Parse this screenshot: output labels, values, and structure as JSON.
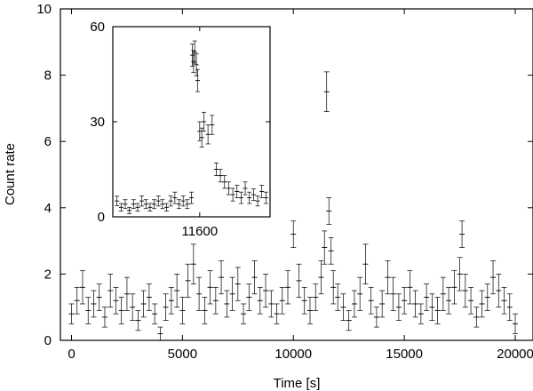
{
  "chart_data": [
    {
      "type": "scatter",
      "xlabel": "Time [s]",
      "ylabel": "Count rate",
      "xlim": [
        -500,
        20800
      ],
      "ylim": [
        0,
        10
      ],
      "xticks": [
        0,
        5000,
        10000,
        15000,
        20000
      ],
      "xtick_labels": [
        "0",
        "5000",
        "10000",
        "15000",
        "20000"
      ],
      "yticks": [
        0,
        2,
        4,
        6,
        8,
        10
      ],
      "ytick_labels": [
        "0",
        "2",
        "4",
        "6",
        "8",
        "10"
      ],
      "grid": false,
      "series": [
        {
          "x": [
            0,
            250,
            500,
            750,
            1000,
            1250,
            1500,
            1750,
            2000,
            2250,
            2500,
            2750,
            3000,
            3250,
            3500,
            3750,
            4000,
            4250,
            4500,
            4750,
            5000,
            5250,
            5500,
            5750,
            6000,
            6250,
            6500,
            6750,
            7000,
            7250,
            7500,
            7750,
            8000,
            8250,
            8500,
            8750,
            9000,
            9250,
            9500,
            9750,
            10000,
            10250,
            10500,
            10750,
            11000,
            11250,
            11400,
            11500,
            11600,
            11700,
            11800,
            12000,
            12250,
            12500,
            12750,
            13000,
            13250,
            13500,
            13750,
            14000,
            14250,
            14500,
            14750,
            15000,
            15250,
            15500,
            15750,
            16000,
            16250,
            16500,
            16750,
            17000,
            17250,
            17500,
            17600,
            17750,
            18000,
            18250,
            18500,
            18750,
            19000,
            19250,
            19500,
            19750,
            20000
          ],
          "y": [
            0.8,
            1.2,
            1.6,
            0.9,
            1.1,
            1.3,
            0.7,
            1.5,
            1.2,
            0.9,
            1.4,
            1.0,
            0.6,
            1.1,
            1.3,
            0.8,
            0.2,
            1.0,
            1.2,
            1.5,
            0.9,
            1.8,
            2.3,
            1.4,
            0.9,
            1.6,
            1.2,
            1.9,
            1.1,
            1.4,
            1.7,
            0.8,
            1.3,
            1.9,
            1.2,
            1.5,
            1.1,
            0.8,
            1.2,
            1.6,
            3.2,
            1.8,
            1.2,
            0.9,
            1.3,
            1.9,
            2.8,
            7.5,
            3.9,
            2.7,
            1.6,
            1.3,
            1.0,
            0.6,
            1.1,
            1.4,
            2.3,
            1.2,
            0.7,
            1.1,
            1.9,
            1.4,
            1.0,
            1.2,
            1.6,
            1.1,
            0.8,
            1.3,
            1.0,
            0.9,
            1.4,
            1.2,
            1.6,
            2.0,
            3.2,
            1.5,
            1.2,
            0.7,
            1.1,
            1.3,
            1.9,
            1.5,
            1.2,
            1.0,
            0.5
          ],
          "yerr": [
            0.3,
            0.4,
            0.5,
            0.4,
            0.4,
            0.4,
            0.3,
            0.5,
            0.4,
            0.4,
            0.5,
            0.4,
            0.3,
            0.4,
            0.4,
            0.3,
            0.2,
            0.4,
            0.4,
            0.5,
            0.4,
            0.5,
            0.6,
            0.5,
            0.4,
            0.5,
            0.4,
            0.5,
            0.4,
            0.5,
            0.5,
            0.3,
            0.4,
            0.5,
            0.4,
            0.5,
            0.4,
            0.3,
            0.4,
            0.5,
            0.4,
            0.5,
            0.4,
            0.4,
            0.4,
            0.5,
            0.5,
            0.6,
            0.4,
            0.4,
            0.5,
            0.4,
            0.4,
            0.3,
            0.4,
            0.5,
            0.6,
            0.4,
            0.3,
            0.4,
            0.5,
            0.5,
            0.4,
            0.4,
            0.5,
            0.4,
            0.3,
            0.4,
            0.4,
            0.4,
            0.5,
            0.4,
            0.5,
            0.5,
            0.4,
            0.5,
            0.4,
            0.3,
            0.4,
            0.4,
            0.5,
            0.5,
            0.4,
            0.4,
            0.3
          ]
        }
      ]
    },
    {
      "type": "scatter",
      "xlim": [
        11390,
        11770
      ],
      "ylim": [
        0,
        60
      ],
      "xticks": [
        11600
      ],
      "xtick_labels": [
        "11600"
      ],
      "yticks": [
        0,
        30,
        60
      ],
      "ytick_labels": [
        "0",
        "30",
        "60"
      ],
      "grid": false,
      "series": [
        {
          "x": [
            11400,
            11410,
            11420,
            11430,
            11440,
            11450,
            11460,
            11470,
            11480,
            11490,
            11500,
            11510,
            11520,
            11530,
            11540,
            11550,
            11560,
            11570,
            11580,
            11582,
            11585,
            11588,
            11592,
            11595,
            11600,
            11605,
            11610,
            11620,
            11630,
            11640,
            11650,
            11660,
            11670,
            11680,
            11690,
            11700,
            11710,
            11720,
            11730,
            11740,
            11750,
            11760
          ],
          "y": [
            5,
            3,
            4,
            2,
            4,
            3,
            5,
            4,
            3,
            4,
            5,
            4,
            3,
            5,
            6,
            4,
            5,
            4,
            6,
            51,
            49,
            52,
            48,
            43,
            27,
            25,
            30,
            26,
            29,
            15,
            13,
            11,
            9,
            7,
            8,
            6,
            9,
            6,
            7,
            5,
            8,
            6
          ],
          "yerr": [
            1.5,
            1.2,
            1.4,
            1.0,
            1.4,
            1.2,
            1.6,
            1.4,
            1.2,
            1.4,
            1.6,
            1.4,
            1.2,
            1.6,
            1.8,
            1.4,
            1.6,
            1.4,
            1.8,
            3.5,
            3.5,
            3.5,
            3.5,
            3.5,
            3,
            3,
            3,
            3,
            3,
            2,
            2,
            2,
            2,
            2,
            2,
            1.8,
            2,
            1.8,
            1.8,
            1.6,
            2,
            1.8
          ]
        }
      ]
    }
  ]
}
